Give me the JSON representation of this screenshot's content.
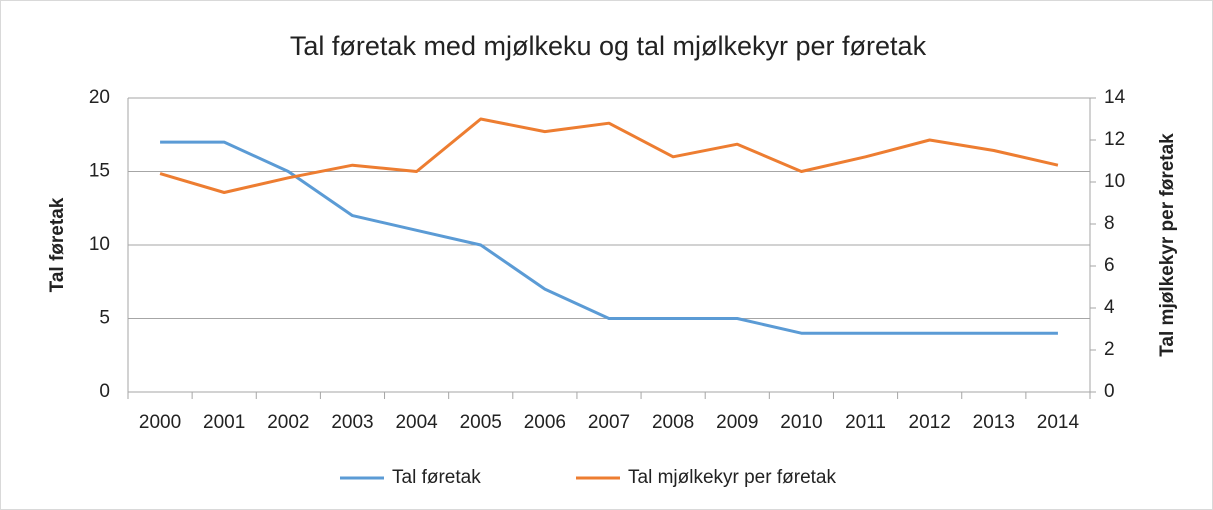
{
  "chart_data": {
    "type": "line",
    "title": "Tal føretak med mjølkeku og tal mjølkekyr per føretak",
    "ylabel": "Tal føretak",
    "y2label": "Tal mjølkekyr per føretak",
    "categories": [
      "2000",
      "2001",
      "2002",
      "2003",
      "2004",
      "2005",
      "2006",
      "2007",
      "2008",
      "2009",
      "2010",
      "2011",
      "2012",
      "2013",
      "2014"
    ],
    "series": [
      {
        "name": "Tal føretak",
        "color": "#5b9bd5",
        "values": [
          17,
          17,
          15,
          12,
          11,
          10,
          7,
          5,
          5,
          5,
          4,
          4,
          4,
          4,
          4
        ]
      },
      {
        "name": "Tal mjølkekyr per føretak",
        "color": "#ed7d31",
        "axis": "y2",
        "values": [
          10.4,
          9.5,
          10.2,
          10.8,
          10.5,
          13.0,
          12.4,
          12.8,
          11.2,
          11.8,
          10.5,
          11.2,
          12.0,
          11.5,
          10.8
        ]
      }
    ],
    "ylim": [
      0,
      20
    ],
    "yticks": [
      0,
      5,
      10,
      15,
      20
    ],
    "y2lim": [
      0,
      14
    ],
    "y2ticks": [
      0,
      2,
      4,
      6,
      8,
      10,
      12,
      14
    ],
    "grid": true,
    "legend": "bottom"
  }
}
